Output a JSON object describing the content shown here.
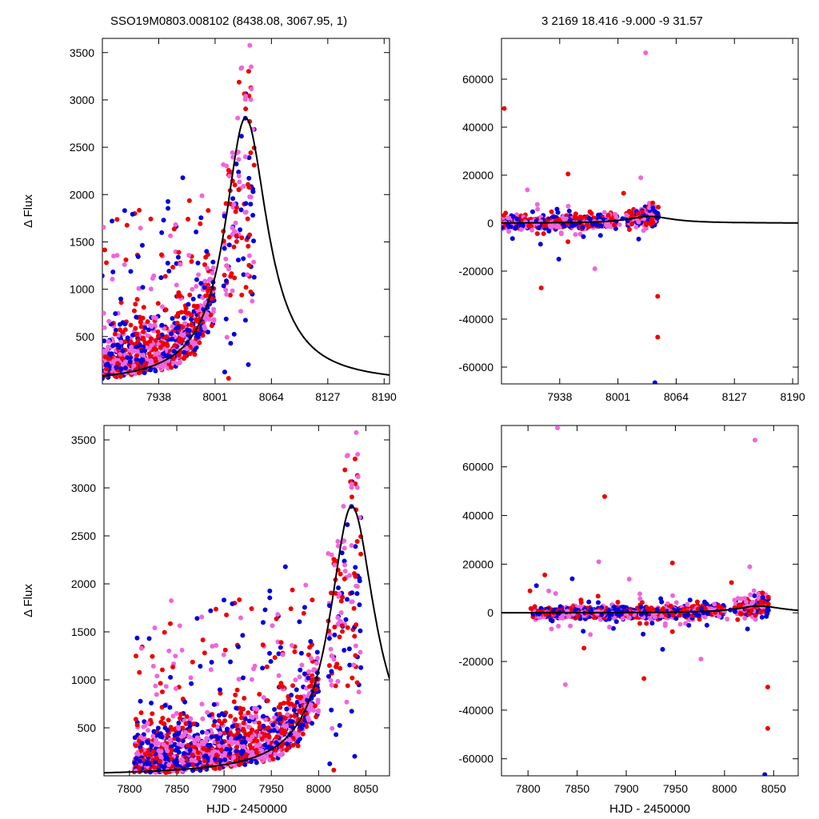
{
  "header": {
    "left": "SSO19M0803.008102 (8438.08, 3067.95,    1)",
    "right": "3   2169   18.416   -9.000   -9   31.57"
  },
  "colors": {
    "red": "#ee0000",
    "blue": "#0000dd",
    "violet": "#ee66dd",
    "model": "#000000"
  },
  "model": {
    "description_note": "",
    "peak_hjd": 8035,
    "peak_flux": 2810,
    "rise_width": 28,
    "decay_width": 30
  },
  "chart_data": [
    {
      "type": "scatter",
      "panel": "top-left",
      "xlabel": "",
      "ylabel": "Δ Flux",
      "xlim": [
        7875,
        8196
      ],
      "ylim": [
        0,
        3650
      ],
      "xticks": [
        7938,
        8001,
        8064,
        8127,
        8190
      ],
      "yticks": [
        500,
        1000,
        1500,
        2000,
        2500,
        3000,
        3500
      ],
      "series": [
        {
          "name": "",
          "color": "red"
        },
        {
          "name": "",
          "color": "blue"
        },
        {
          "name": "",
          "color": "violet"
        },
        {
          "name": "",
          "color": "model",
          "kind": "line"
        }
      ]
    },
    {
      "type": "scatter",
      "panel": "top-right",
      "xlabel": "",
      "ylabel": "",
      "xlim": [
        7875,
        8196
      ],
      "ylim": [
        -67000,
        77000
      ],
      "xticks": [
        7938,
        8001,
        8064,
        8127,
        8190
      ],
      "yticks": [
        -60000,
        -40000,
        -20000,
        0,
        20000,
        40000,
        60000
      ],
      "series": [
        {
          "name": "",
          "color": "red"
        },
        {
          "name": "",
          "color": "blue"
        },
        {
          "name": "",
          "color": "violet"
        },
        {
          "name": "",
          "color": "model",
          "kind": "line"
        }
      ]
    },
    {
      "type": "scatter",
      "panel": "bottom-left",
      "xlabel": "HJD - 2450000",
      "ylabel": "Δ Flux",
      "xlim": [
        7773,
        8075
      ],
      "ylim": [
        0,
        3650
      ],
      "xticks": [
        7800,
        7850,
        7900,
        7950,
        8000,
        8050
      ],
      "yticks": [
        500,
        1000,
        1500,
        2000,
        2500,
        3000,
        3500
      ],
      "series": [
        {
          "name": "",
          "color": "red"
        },
        {
          "name": "",
          "color": "blue"
        },
        {
          "name": "",
          "color": "violet"
        },
        {
          "name": "",
          "color": "model",
          "kind": "line"
        }
      ]
    },
    {
      "type": "scatter",
      "panel": "bottom-right",
      "xlabel": "HJD - 2450000",
      "ylabel": "",
      "xlim": [
        7773,
        8075
      ],
      "ylim": [
        -67000,
        77000
      ],
      "xticks": [
        7800,
        7850,
        7900,
        7950,
        8000,
        8050
      ],
      "yticks": [
        -60000,
        -40000,
        -20000,
        0,
        20000,
        40000,
        60000
      ],
      "series": [
        {
          "name": "",
          "color": "red"
        },
        {
          "name": "",
          "color": "blue"
        },
        {
          "name": "",
          "color": "violet"
        },
        {
          "name": "",
          "color": "model",
          "kind": "line"
        }
      ]
    }
  ]
}
